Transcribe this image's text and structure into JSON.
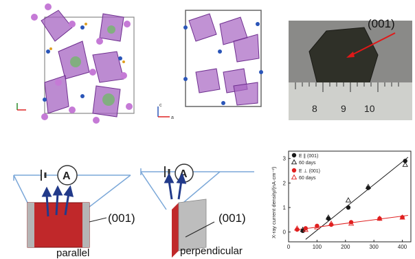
{
  "crystal_photo": {
    "facet_label": "(001)",
    "ruler_ticks": [
      "8",
      "9",
      "10"
    ]
  },
  "structure_views": {
    "left_axis_labels": [
      "c",
      "a"
    ],
    "middle_axis_labels": [
      "c",
      "a"
    ]
  },
  "schematics": {
    "meter_symbol": "A",
    "parallel_label": "parallel",
    "perpendicular_label": "perpendicular",
    "facet_label_parallel": "(001)",
    "facet_label_perpendicular": "(001)"
  },
  "colors": {
    "parallel_series": "#1a1a1a",
    "perpendicular_series": "#e02020",
    "octahedra": "#9b59b6",
    "electrode_red": "#c0282a"
  },
  "chart_data": {
    "type": "scatter",
    "xlabel": "",
    "ylabel": "X-ray current density/(nA·cm⁻²)",
    "xlim": [
      0,
      430
    ],
    "ylim": [
      -0.4,
      3.3
    ],
    "x_ticks": [
      "0",
      "100",
      "200",
      "300",
      "400"
    ],
    "y_ticks": [
      "0",
      "1",
      "2",
      "3"
    ],
    "legend": [
      {
        "label": "E ∥ (001)",
        "marker": "filled-circle"
      },
      {
        "label": "60 days",
        "marker": "open-triangle"
      },
      {
        "label": "E ⊥ (001)",
        "marker": "filled-circle-red"
      },
      {
        "label": "60 days",
        "marker": "open-triangle-red"
      }
    ],
    "series": [
      {
        "name": "E ∥ (001)",
        "x": [
          50,
          140,
          210,
          280,
          410
        ],
        "y": [
          0.05,
          0.55,
          1.0,
          1.8,
          2.9
        ]
      },
      {
        "name": "60 days",
        "x": [
          50,
          140,
          210,
          280,
          410
        ],
        "y": [
          0.1,
          0.6,
          1.3,
          1.85,
          2.75
        ]
      },
      {
        "name": "E ⊥ (001)",
        "x": [
          30,
          60,
          100,
          150,
          220,
          320,
          400
        ],
        "y": [
          0.1,
          0.15,
          0.25,
          0.3,
          0.4,
          0.55,
          0.6
        ]
      },
      {
        "name": "60 days",
        "x": [
          30,
          60,
          100,
          150,
          220,
          320,
          400
        ],
        "y": [
          0.15,
          0.1,
          0.2,
          0.35,
          0.35,
          0.55,
          0.6
        ]
      }
    ],
    "fit_lines": [
      {
        "x": [
          60,
          420
        ],
        "y": [
          -0.3,
          3.05
        ]
      },
      {
        "x": [
          20,
          420
        ],
        "y": [
          0.08,
          0.68
        ]
      }
    ]
  }
}
